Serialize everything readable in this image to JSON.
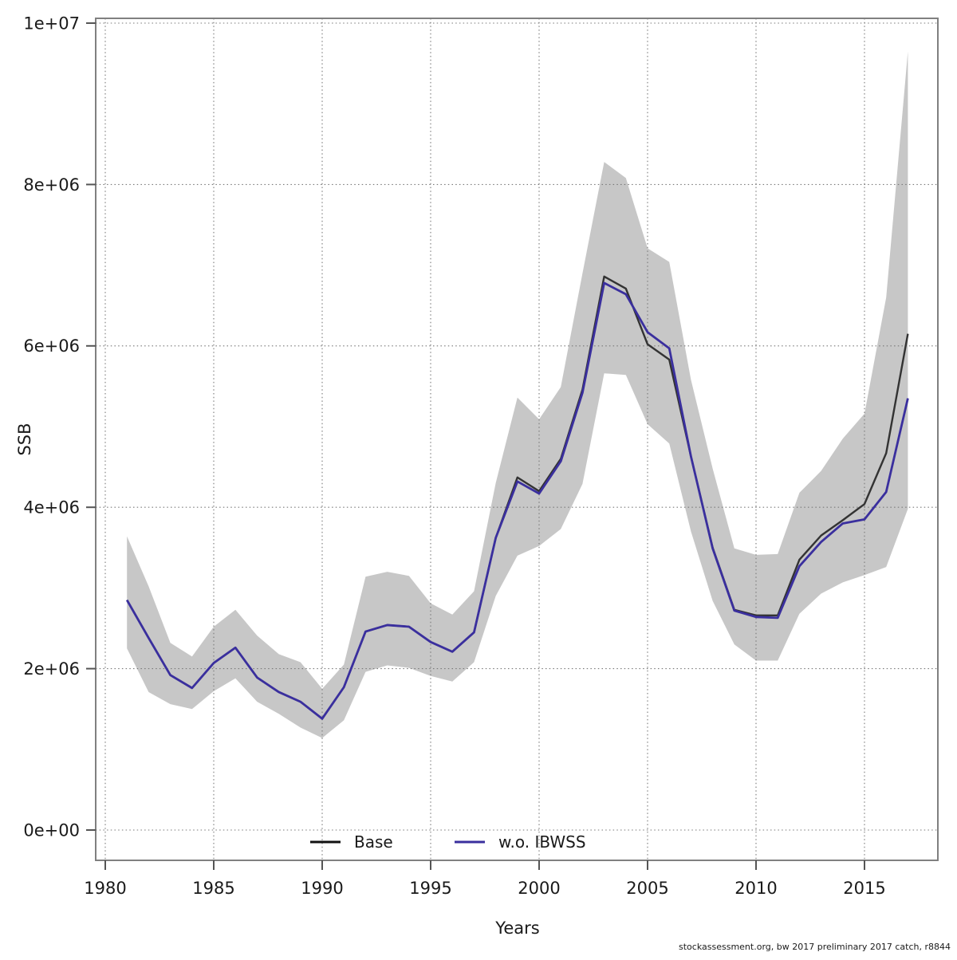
{
  "footer": {
    "note": "stockassessment.org, bw 2017 preliminary 2017 catch, r8844"
  },
  "colors": {
    "band": "#c7c7c7",
    "base_line": "#333333",
    "wo_ibwss_line": "#3a2f9e",
    "grid": "#787878",
    "border": "#808080",
    "tick": "#555555",
    "text": "#1a1a1a"
  },
  "chart_data": {
    "type": "line",
    "title": "",
    "xlabel": "Years",
    "ylabel": "SSB",
    "grid": "dotted",
    "legend_position": "bottom-inside",
    "xlim": [
      1979.5,
      2018.5
    ],
    "ylim": [
      0,
      10000000
    ],
    "x": [
      1981,
      1982,
      1983,
      1984,
      1985,
      1986,
      1987,
      1988,
      1989,
      1990,
      1991,
      1992,
      1993,
      1994,
      1995,
      1996,
      1997,
      1998,
      1999,
      2000,
      2001,
      2002,
      2003,
      2004,
      2005,
      2006,
      2007,
      2008,
      2009,
      2010,
      2011,
      2012,
      2013,
      2014,
      2015,
      2016,
      2017
    ],
    "series": [
      {
        "name": "Base",
        "values": [
          2850000,
          2380000,
          1920000,
          1760000,
          2070000,
          2260000,
          1890000,
          1710000,
          1590000,
          1380000,
          1770000,
          2460000,
          2540000,
          2520000,
          2330000,
          2210000,
          2450000,
          3620000,
          4370000,
          4200000,
          4600000,
          5460000,
          6860000,
          6710000,
          6020000,
          5830000,
          4630000,
          3500000,
          2730000,
          2660000,
          2660000,
          3350000,
          3650000,
          3840000,
          4040000,
          4670000,
          6150000
        ]
      },
      {
        "name": "w.o. IBWSS",
        "values": [
          2850000,
          2380000,
          1920000,
          1760000,
          2070000,
          2260000,
          1890000,
          1710000,
          1590000,
          1380000,
          1770000,
          2460000,
          2540000,
          2520000,
          2330000,
          2210000,
          2450000,
          3620000,
          4320000,
          4170000,
          4570000,
          5420000,
          6780000,
          6640000,
          6170000,
          5970000,
          4630000,
          3490000,
          2720000,
          2640000,
          2630000,
          3270000,
          3570000,
          3800000,
          3850000,
          4190000,
          5350000
        ]
      }
    ],
    "confidence_band": {
      "series": "Base",
      "upper": [
        3640000,
        3020000,
        2320000,
        2150000,
        2520000,
        2730000,
        2410000,
        2180000,
        2080000,
        1750000,
        2050000,
        3140000,
        3200000,
        3150000,
        2810000,
        2670000,
        2960000,
        4300000,
        5360000,
        5090000,
        5490000,
        6900000,
        8280000,
        8080000,
        7210000,
        7040000,
        5580000,
        4480000,
        3490000,
        3410000,
        3420000,
        4180000,
        4450000,
        4850000,
        5160000,
        6600000,
        9650000
      ],
      "lower": [
        2250000,
        1710000,
        1560000,
        1500000,
        1720000,
        1880000,
        1590000,
        1440000,
        1270000,
        1140000,
        1360000,
        1960000,
        2040000,
        2010000,
        1910000,
        1840000,
        2080000,
        2900000,
        3400000,
        3520000,
        3730000,
        4290000,
        5660000,
        5640000,
        5030000,
        4790000,
        3700000,
        2840000,
        2300000,
        2100000,
        2100000,
        2680000,
        2930000,
        3070000,
        3160000,
        3260000,
        3980000
      ]
    },
    "x_ticks": {
      "values": [
        1980,
        1985,
        1990,
        1995,
        2000,
        2005,
        2010,
        2015
      ],
      "labels": [
        "1980",
        "1985",
        "1990",
        "1995",
        "2000",
        "2005",
        "2010",
        "2015"
      ]
    },
    "y_ticks": {
      "values": [
        0,
        2000000,
        4000000,
        6000000,
        8000000,
        10000000
      ],
      "labels": [
        "0e+00",
        "2e+06",
        "4e+06",
        "6e+06",
        "8e+06",
        "1e+07"
      ]
    }
  }
}
